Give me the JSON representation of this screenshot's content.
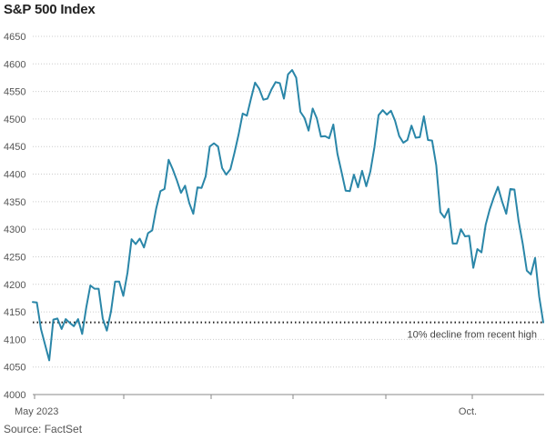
{
  "chart_data": {
    "type": "line",
    "title": "S&P 500 Index",
    "xlabel": "",
    "ylabel": "",
    "ylim": [
      4000,
      4650
    ],
    "yticks": [
      4000,
      4050,
      4100,
      4150,
      4200,
      4250,
      4300,
      4350,
      4400,
      4450,
      4500,
      4550,
      4600,
      4650
    ],
    "xticks": [
      "May 2023",
      "Oct."
    ],
    "grid": "horizontal dotted",
    "series": [
      {
        "color": "#2a86a8",
        "values": [
          4168,
          4167,
          4119,
          4090,
          4062,
          4136,
          4138,
          4119,
          4137,
          4130,
          4124,
          4137,
          4110,
          4158,
          4198,
          4192,
          4192,
          4138,
          4116,
          4151,
          4205,
          4205,
          4179,
          4221,
          4282,
          4273,
          4283,
          4267,
          4293,
          4298,
          4338,
          4369,
          4373,
          4426,
          4409,
          4389,
          4366,
          4379,
          4348,
          4328,
          4376,
          4375,
          4396,
          4450,
          4456,
          4450,
          4411,
          4399,
          4409,
          4439,
          4472,
          4510,
          4506,
          4537,
          4566,
          4555,
          4535,
          4537,
          4554,
          4567,
          4565,
          4537,
          4581,
          4589,
          4575,
          4513,
          4502,
          4479,
          4519,
          4501,
          4468,
          4469,
          4465,
          4490,
          4437,
          4404,
          4370,
          4369,
          4399,
          4376,
          4406,
          4378,
          4405,
          4449,
          4507,
          4516,
          4508,
          4515,
          4497,
          4469,
          4457,
          4462,
          4488,
          4466,
          4467,
          4505,
          4462,
          4461,
          4416,
          4331,
          4321,
          4337,
          4274,
          4274,
          4300,
          4287,
          4288,
          4230,
          4264,
          4258,
          4308,
          4336,
          4358,
          4377,
          4350,
          4328,
          4373,
          4372,
          4315,
          4274,
          4225,
          4218,
          4248,
          4178,
          4131
        ]
      }
    ],
    "reference_line": {
      "value": 4131,
      "label": "10% decline from recent high"
    }
  },
  "source": "Source: FactSet"
}
